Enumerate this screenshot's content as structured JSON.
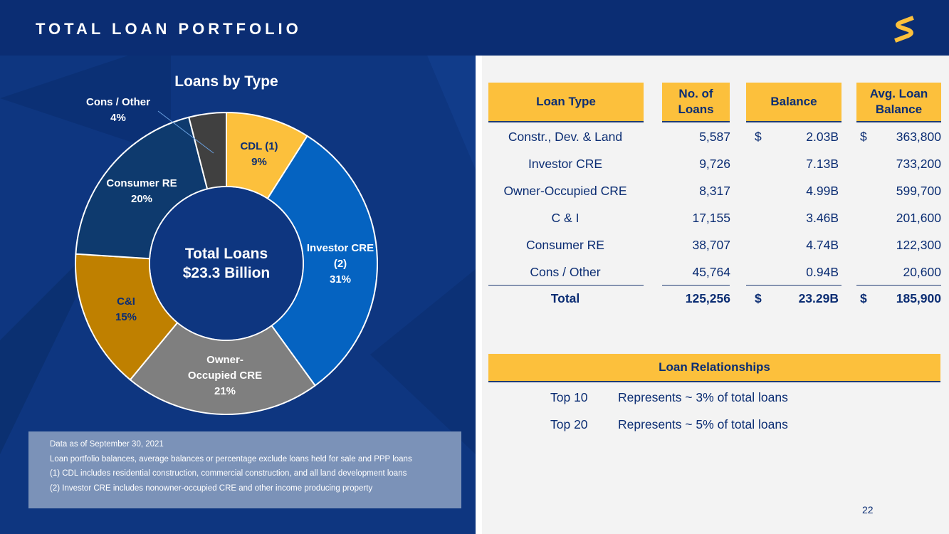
{
  "header": {
    "title": "TOTAL LOAN PORTFOLIO"
  },
  "colors": {
    "header_bg": "#0b2d73",
    "panel_bg": "#0e3680",
    "accent_yellow": "#fcc03c",
    "text_navy": "#0b2d73"
  },
  "chart_data": {
    "type": "pie",
    "title": "Loans by Type",
    "center_label": [
      "Total Loans",
      "$23.3 Billion"
    ],
    "slices": [
      {
        "name": "CDL (1)",
        "label_lines": [
          "CDL (1)",
          "9%"
        ],
        "value": 9,
        "color": "#fcc03c"
      },
      {
        "name": "Investor CRE (2)",
        "label_lines": [
          "Investor CRE",
          "(2)",
          "31%"
        ],
        "value": 31,
        "color": "#0563c1"
      },
      {
        "name": "Owner-Occupied CRE",
        "label_lines": [
          "Owner-",
          "Occupied CRE",
          "21%"
        ],
        "value": 21,
        "color": "#7f7f7f"
      },
      {
        "name": "C&I",
        "label_lines": [
          "C&I",
          "15%"
        ],
        "value": 15,
        "color": "#bf8000"
      },
      {
        "name": "Consumer RE",
        "label_lines": [
          "Consumer RE",
          "20%"
        ],
        "value": 20,
        "color": "#0e3a6e"
      },
      {
        "name": "Cons / Other",
        "label_lines": [
          "Cons / Other",
          "4%"
        ],
        "value": 4,
        "color": "#404040"
      }
    ]
  },
  "notes": [
    "Data as of September 30, 2021",
    "Loan portfolio balances, average balances or percentage exclude loans held for sale and PPP loans",
    "(1) CDL includes residential construction, commercial construction, and all land development loans",
    "(2) Investor CRE includes nonowner-occupied CRE and other income producing property"
  ],
  "table": {
    "headers": {
      "loan_type": "Loan Type",
      "num_loans": "No. of Loans",
      "balance": "Balance",
      "avg_balance": "Avg. Loan Balance"
    },
    "rows": [
      {
        "type": "Constr., Dev. & Land",
        "num": "5,587",
        "dollar1": "$",
        "balance": "2.03B",
        "dollar2": "$",
        "avg": "363,800"
      },
      {
        "type": "Investor CRE",
        "num": "9,726",
        "dollar1": "",
        "balance": "7.13B",
        "dollar2": "",
        "avg": "733,200"
      },
      {
        "type": "Owner-Occupied CRE",
        "num": "8,317",
        "dollar1": "",
        "balance": "4.99B",
        "dollar2": "",
        "avg": "599,700"
      },
      {
        "type": "C & I",
        "num": "17,155",
        "dollar1": "",
        "balance": "3.46B",
        "dollar2": "",
        "avg": "201,600"
      },
      {
        "type": "Consumer RE",
        "num": "38,707",
        "dollar1": "",
        "balance": "4.74B",
        "dollar2": "",
        "avg": "122,300"
      },
      {
        "type": "Cons / Other",
        "num": "45,764",
        "dollar1": "",
        "balance": "0.94B",
        "dollar2": "",
        "avg": "20,600"
      }
    ],
    "total": {
      "type": "Total",
      "num": "125,256",
      "dollar1": "$",
      "balance": "23.29B",
      "dollar2": "$",
      "avg": "185,900"
    }
  },
  "relationships": {
    "title": "Loan Relationships",
    "items": [
      {
        "label": "Top 10",
        "text": "Represents ~ 3% of total loans"
      },
      {
        "label": "Top 20",
        "text": "Represents ~ 5% of total loans"
      }
    ]
  },
  "page_number": "22"
}
